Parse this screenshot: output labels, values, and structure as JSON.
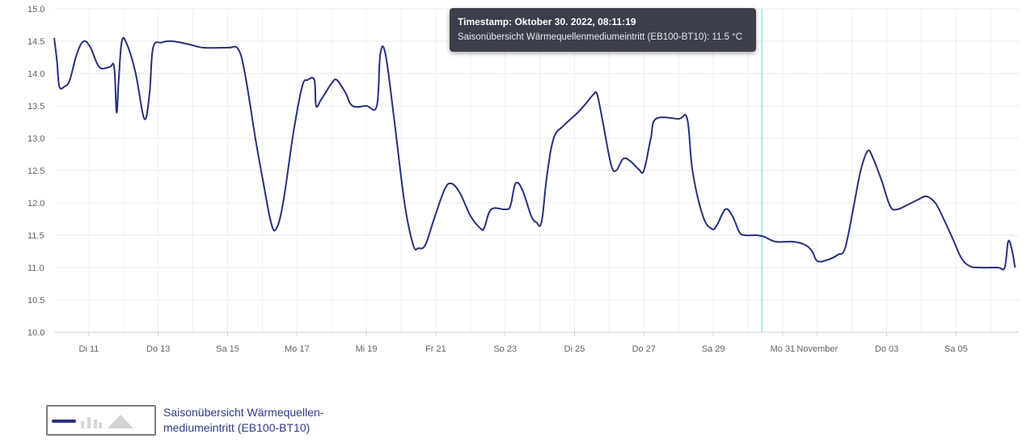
{
  "chart_data": {
    "type": "line",
    "y_ticks": [
      "15.0",
      "14.5",
      "14.0",
      "13.5",
      "13.0",
      "12.5",
      "12.0",
      "11.5",
      "11.0",
      "10.5",
      "10.0"
    ],
    "ylim": [
      10.0,
      15.0
    ],
    "x_ticks": [
      {
        "label": "Di 11",
        "day": 1
      },
      {
        "label": "Do 13",
        "day": 3
      },
      {
        "label": "Sa 15",
        "day": 5
      },
      {
        "label": "Mo 17",
        "day": 7
      },
      {
        "label": "Mi 19",
        "day": 9
      },
      {
        "label": "Fr 21",
        "day": 11
      },
      {
        "label": "So 23",
        "day": 13
      },
      {
        "label": "Di 25",
        "day": 15
      },
      {
        "label": "Do 27",
        "day": 17
      },
      {
        "label": "Sa 29",
        "day": 19
      },
      {
        "label": "Mo 31",
        "day": 21
      },
      {
        "label": "November",
        "day": 22
      },
      {
        "label": "Do 03",
        "day": 24
      },
      {
        "label": "Sa 05",
        "day": 26
      }
    ],
    "xlim": [
      0,
      27.7
    ],
    "series": [
      {
        "name": "Saisonübersicht Wärmequellen-mediumeintritt (EB100-BT10)",
        "color": "#26307a",
        "points": [
          [
            0.0,
            14.55
          ],
          [
            0.08,
            14.2
          ],
          [
            0.15,
            13.8
          ],
          [
            0.3,
            13.8
          ],
          [
            0.45,
            13.9
          ],
          [
            0.65,
            14.3
          ],
          [
            0.85,
            14.5
          ],
          [
            1.05,
            14.4
          ],
          [
            1.3,
            14.1
          ],
          [
            1.6,
            14.1
          ],
          [
            1.73,
            14.1
          ],
          [
            1.8,
            13.4
          ],
          [
            1.86,
            13.9
          ],
          [
            1.95,
            14.5
          ],
          [
            2.1,
            14.45
          ],
          [
            2.35,
            14.0
          ],
          [
            2.6,
            13.3
          ],
          [
            2.75,
            13.7
          ],
          [
            2.85,
            14.4
          ],
          [
            3.1,
            14.48
          ],
          [
            3.4,
            14.5
          ],
          [
            3.9,
            14.45
          ],
          [
            4.3,
            14.4
          ],
          [
            5.0,
            14.4
          ],
          [
            5.3,
            14.38
          ],
          [
            5.5,
            14.0
          ],
          [
            5.8,
            13.0
          ],
          [
            6.0,
            12.4
          ],
          [
            6.25,
            11.7
          ],
          [
            6.4,
            11.6
          ],
          [
            6.6,
            12.0
          ],
          [
            6.9,
            13.1
          ],
          [
            7.15,
            13.8
          ],
          [
            7.3,
            13.9
          ],
          [
            7.5,
            13.9
          ],
          [
            7.55,
            13.5
          ],
          [
            7.7,
            13.6
          ],
          [
            8.0,
            13.85
          ],
          [
            8.15,
            13.9
          ],
          [
            8.4,
            13.7
          ],
          [
            8.6,
            13.5
          ],
          [
            9.0,
            13.5
          ],
          [
            9.3,
            13.5
          ],
          [
            9.4,
            14.3
          ],
          [
            9.55,
            14.3
          ],
          [
            9.8,
            13.3
          ],
          [
            10.1,
            12.0
          ],
          [
            10.35,
            11.35
          ],
          [
            10.5,
            11.3
          ],
          [
            10.7,
            11.35
          ],
          [
            10.95,
            11.75
          ],
          [
            11.25,
            12.2
          ],
          [
            11.45,
            12.3
          ],
          [
            11.7,
            12.15
          ],
          [
            12.0,
            11.8
          ],
          [
            12.3,
            11.6
          ],
          [
            12.4,
            11.62
          ],
          [
            12.6,
            11.9
          ],
          [
            13.0,
            11.9
          ],
          [
            13.15,
            11.95
          ],
          [
            13.3,
            12.3
          ],
          [
            13.5,
            12.2
          ],
          [
            13.75,
            11.8
          ],
          [
            13.9,
            11.7
          ],
          [
            14.05,
            11.7
          ],
          [
            14.2,
            12.4
          ],
          [
            14.4,
            13.0
          ],
          [
            14.7,
            13.2
          ],
          [
            15.1,
            13.4
          ],
          [
            15.35,
            13.55
          ],
          [
            15.55,
            13.68
          ],
          [
            15.65,
            13.68
          ],
          [
            15.8,
            13.3
          ],
          [
            16.05,
            12.6
          ],
          [
            16.2,
            12.5
          ],
          [
            16.4,
            12.68
          ],
          [
            16.6,
            12.65
          ],
          [
            16.85,
            12.52
          ],
          [
            17.0,
            12.5
          ],
          [
            17.2,
            13.0
          ],
          [
            17.35,
            13.3
          ],
          [
            18.0,
            13.3
          ],
          [
            18.25,
            13.3
          ],
          [
            18.4,
            12.5
          ],
          [
            18.7,
            11.8
          ],
          [
            18.95,
            11.6
          ],
          [
            19.1,
            11.65
          ],
          [
            19.35,
            11.9
          ],
          [
            19.55,
            11.8
          ],
          [
            19.75,
            11.55
          ],
          [
            19.9,
            11.5
          ],
          [
            20.25,
            11.5
          ],
          [
            20.45,
            11.48
          ],
          [
            20.8,
            11.4
          ],
          [
            21.3,
            11.4
          ],
          [
            21.65,
            11.35
          ],
          [
            21.85,
            11.25
          ],
          [
            22.0,
            11.1
          ],
          [
            22.3,
            11.12
          ],
          [
            22.6,
            11.2
          ],
          [
            22.8,
            11.3
          ],
          [
            23.05,
            11.95
          ],
          [
            23.25,
            12.5
          ],
          [
            23.45,
            12.8
          ],
          [
            23.6,
            12.7
          ],
          [
            23.85,
            12.35
          ],
          [
            24.1,
            11.95
          ],
          [
            24.3,
            11.9
          ],
          [
            24.6,
            11.97
          ],
          [
            24.9,
            12.05
          ],
          [
            25.15,
            12.1
          ],
          [
            25.4,
            12.0
          ],
          [
            25.6,
            11.8
          ],
          [
            25.9,
            11.45
          ],
          [
            26.15,
            11.15
          ],
          [
            26.4,
            11.02
          ],
          [
            26.7,
            11.0
          ],
          [
            27.2,
            11.0
          ],
          [
            27.4,
            11.0
          ],
          [
            27.5,
            11.4
          ],
          [
            27.6,
            11.3
          ],
          [
            27.7,
            11.0
          ]
        ]
      }
    ],
    "grid": true,
    "legend_position": "bottom-left"
  },
  "crosshair": {
    "day": 20.4,
    "color": "#6fd4dd"
  },
  "tooltip": {
    "title": "Timestamp: Oktober 30. 2022, 08:11:19",
    "line": "Saisonübersicht Wärmequellenmediumeintritt (EB100-BT10): 11.5 °C"
  },
  "legend": {
    "label": "Saisonübersicht Wärmequellen-mediumeintritt (EB100-BT10)",
    "label_line1": "Saisonübersicht Wärmequellen-",
    "label_line2": "mediumeintritt (EB100-BT10)",
    "chip_icons": [
      "line-icon",
      "bar-icon",
      "area-icon"
    ]
  }
}
